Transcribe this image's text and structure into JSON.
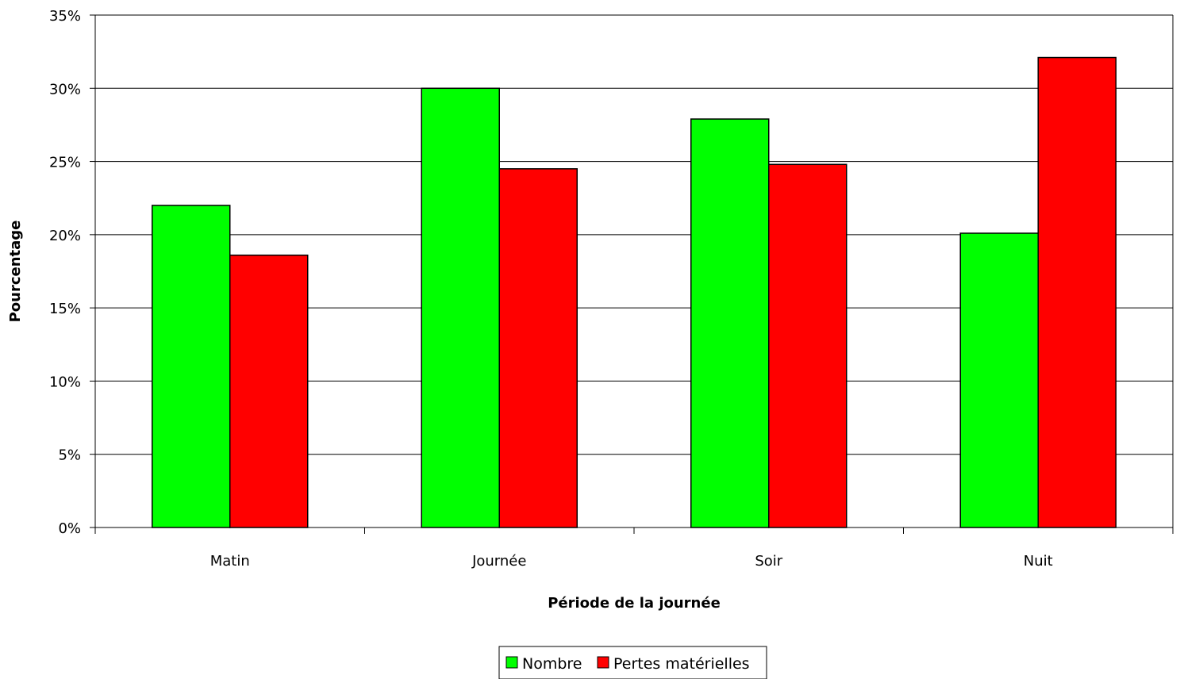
{
  "chart_data": {
    "type": "bar",
    "title": "",
    "xlabel": "Période de la journée",
    "ylabel": "Pourcentage",
    "categories": [
      "Matin",
      "Journée",
      "Soir",
      "Nuit"
    ],
    "series": [
      {
        "name": "Nombre",
        "color": "#00ff00",
        "values": [
          22.0,
          30.0,
          27.9,
          20.1
        ]
      },
      {
        "name": "Pertes matérielles",
        "color": "#ff0000",
        "values": [
          18.6,
          24.5,
          24.8,
          32.1
        ]
      }
    ],
    "ylim": [
      0,
      35
    ],
    "yticks": [
      0,
      5,
      10,
      15,
      20,
      25,
      30,
      35
    ],
    "ytick_labels": [
      "0%",
      "5%",
      "10%",
      "15%",
      "20%",
      "25%",
      "30%",
      "35%"
    ],
    "grid": true,
    "legend_position": "bottom-center"
  }
}
